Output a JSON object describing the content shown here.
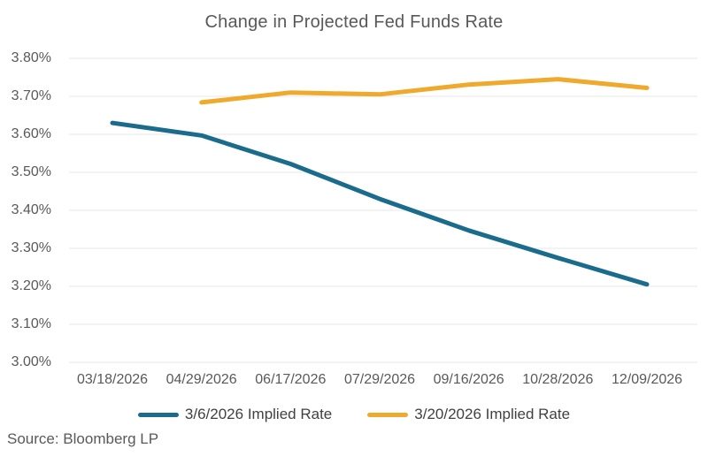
{
  "title": "Change in Projected Fed Funds Rate",
  "source": "Source: Bloomberg LP",
  "colors": {
    "series1": "#1B6C8C",
    "series2": "#EFA92C",
    "grid": "#E7E7E7",
    "axis_text": "#58595B",
    "legend_text": "#414042",
    "title_text": "#58595B"
  },
  "chart_data": {
    "type": "line",
    "title": "Change in Projected Fed Funds Rate",
    "categories": [
      "03/18/2026",
      "04/29/2026",
      "06/17/2026",
      "07/29/2026",
      "09/16/2026",
      "10/28/2026",
      "12/09/2026"
    ],
    "series": [
      {
        "name": "3/6/2026 Implied Rate",
        "color": "#1B6C8C",
        "values": [
          3.63,
          3.597,
          3.522,
          3.43,
          3.347,
          3.275,
          3.205
        ]
      },
      {
        "name": "3/20/2026 Implied Rate",
        "color": "#EFA92C",
        "values": [
          null,
          3.684,
          3.71,
          3.705,
          3.731,
          3.745,
          3.722
        ]
      }
    ],
    "ylim": [
      3.0,
      3.8
    ],
    "y_tick_labels": [
      "3.80%",
      "3.70%",
      "3.60%",
      "3.50%",
      "3.40%",
      "3.30%",
      "3.20%",
      "3.10%",
      "3.00%"
    ],
    "y_tick_format": "percent",
    "grid": true,
    "legend_position": "bottom",
    "footnote": "Source: Bloomberg LP"
  }
}
